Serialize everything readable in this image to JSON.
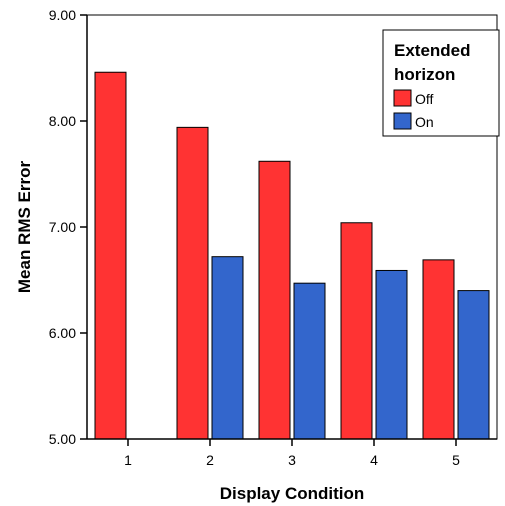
{
  "chart_data": {
    "type": "bar",
    "title": "",
    "xlabel": "Display Condition",
    "ylabel": "Mean RMS Error",
    "categories": [
      "1",
      "2",
      "3",
      "4",
      "5"
    ],
    "series": [
      {
        "name": "Off",
        "color": "#ff3333",
        "values": [
          8.46,
          7.94,
          7.62,
          7.04,
          6.69
        ]
      },
      {
        "name": "On",
        "color": "#3366cc",
        "values": [
          null,
          6.72,
          6.47,
          6.59,
          6.4
        ]
      }
    ],
    "ylim": [
      5.0,
      9.0
    ],
    "yticks": [
      "5.00",
      "6.00",
      "7.00",
      "8.00",
      "9.00"
    ],
    "grid": false,
    "legend": {
      "title_lines": [
        "Extended",
        "horizon"
      ],
      "placement": "top-right"
    }
  }
}
